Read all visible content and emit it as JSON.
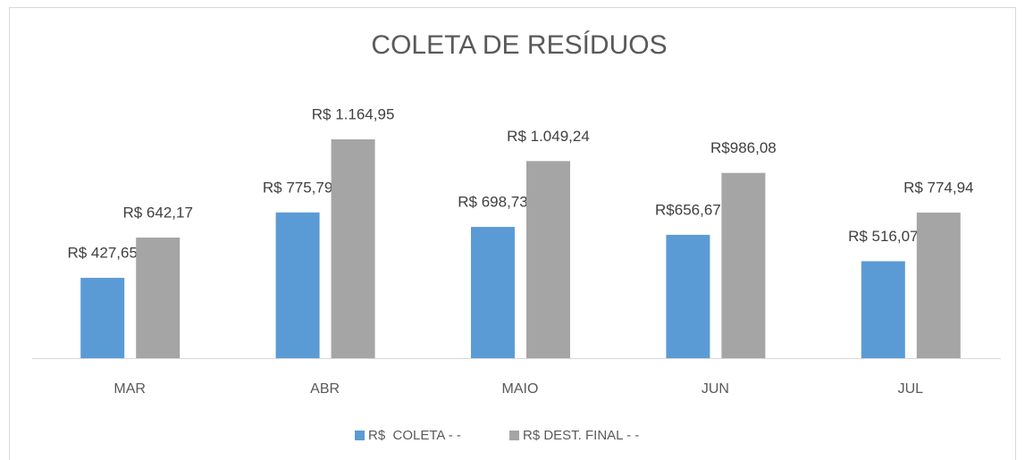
{
  "chart_data": {
    "type": "bar",
    "title": "COLETA DE RESÍDUOS",
    "categories": [
      "MAR",
      "ABR",
      "MAIO",
      "JUN",
      "JUL"
    ],
    "series": [
      {
        "name": "R$  COLETA - -",
        "color": "#5b9bd5",
        "values": [
          427.65,
          775.79,
          698.73,
          656.67,
          516.07
        ],
        "value_labels": [
          "R$ 427,65",
          "R$ 775,79",
          "R$ 698,73",
          "R$656,67",
          "R$ 516,07"
        ]
      },
      {
        "name": "R$ DEST. FINAL - -",
        "color": "#a5a5a5",
        "values": [
          642.17,
          1164.95,
          1049.24,
          986.08,
          774.94
        ],
        "value_labels": [
          "R$ 642,17",
          "R$ 1.164,95",
          "R$ 1.049,24",
          "R$986,08",
          "R$ 774,94"
        ]
      }
    ],
    "legend": "bottom"
  }
}
